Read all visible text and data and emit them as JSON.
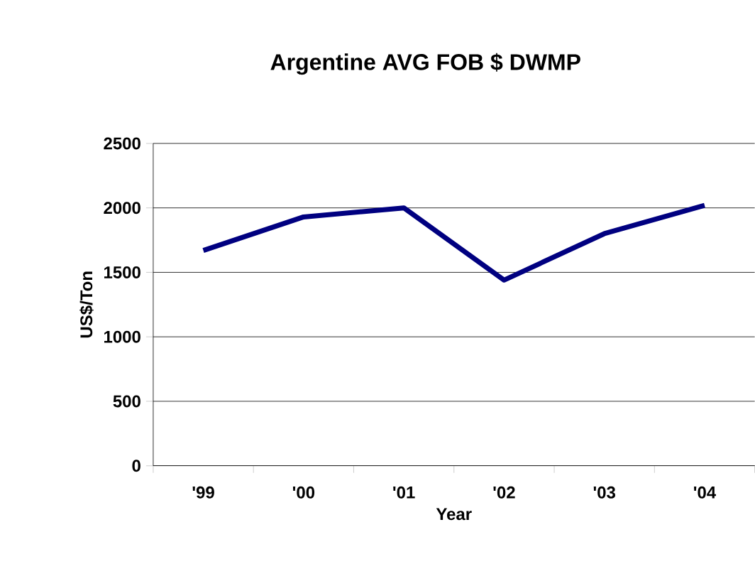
{
  "chart_data": {
    "type": "line",
    "title": "Argentine AVG FOB $ DWMP",
    "xlabel": "Year",
    "ylabel": "US$/Ton",
    "categories": [
      "'99",
      "'00",
      "'01",
      "'02",
      "'03",
      "'04"
    ],
    "values": [
      1670,
      1930,
      2000,
      1440,
      1800,
      2020
    ],
    "color": "#000080",
    "ylim": [
      0,
      2500
    ],
    "yticks": [
      0,
      500,
      1000,
      1500,
      2000,
      2500
    ],
    "grid": "y",
    "marker": "none",
    "line_style": "solid"
  }
}
